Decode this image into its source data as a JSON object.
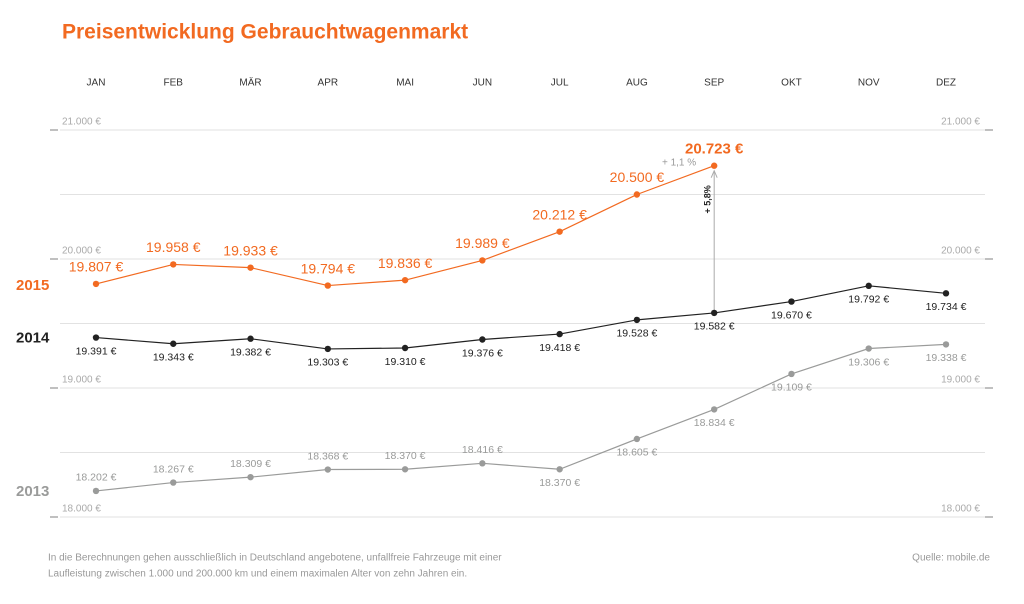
{
  "chart_data": {
    "type": "line",
    "title": "Preisentwicklung Gebrauchtwagenmarkt",
    "categories": [
      "JAN",
      "FEB",
      "MÄR",
      "APR",
      "MAI",
      "JUN",
      "JUL",
      "AUG",
      "SEP",
      "OKT",
      "NOV",
      "DEZ"
    ],
    "series": [
      {
        "name": "2015",
        "color": "#f26a21",
        "values": [
          19807,
          19958,
          19933,
          19794,
          19836,
          19989,
          20212,
          20500,
          20723,
          null,
          null,
          null
        ],
        "value_labels": [
          "19.807 €",
          "19.958 €",
          "19.933 €",
          "19.794 €",
          "19.836 €",
          "19.989 €",
          "20.212 €",
          "20.500 €",
          "20.723 €",
          null,
          null,
          null
        ]
      },
      {
        "name": "2014",
        "color": "#222222",
        "values": [
          19391,
          19343,
          19382,
          19303,
          19310,
          19376,
          19418,
          19528,
          19582,
          19670,
          19792,
          19734
        ],
        "value_labels": [
          "19.391 €",
          "19.343 €",
          "19.382 €",
          "19.303 €",
          "19.310 €",
          "19.376 €",
          "19.418 €",
          "19.528 €",
          "19.582 €",
          "19.670 €",
          "19.792 €",
          "19.734 €"
        ]
      },
      {
        "name": "2013",
        "color": "#9a9b9a",
        "values": [
          18202,
          18267,
          18309,
          18368,
          18370,
          18416,
          18370,
          18605,
          18834,
          19109,
          19306,
          19338
        ],
        "value_labels": [
          "18.202 €",
          "18.267 €",
          "18.309 €",
          "18.368 €",
          "18.370 €",
          "18.416 €",
          "18.370 €",
          "18.605 €",
          "18.834 €",
          "19.109 €",
          "19.306 €",
          "19.338 €"
        ]
      }
    ],
    "ylim": [
      18000,
      21000
    ],
    "yticks": [
      {
        "value": 18000,
        "label": "18.000 €"
      },
      {
        "value": 19000,
        "label": "19.000 €"
      },
      {
        "value": 20000,
        "label": "20.000 €"
      },
      {
        "value": 21000,
        "label": "21.000 €"
      }
    ],
    "ygrid": [
      18500,
      19500,
      20500
    ],
    "annotations": [
      "+ 1,1 %",
      "+ 5,8%"
    ],
    "footnote": [
      "In die Berechnungen gehen ausschließlich in Deutschland angebotene, unfallfreie Fahrzeuge mit einer",
      "Laufleistung zwischen 1.000 und 200.000 km und einem maximalen Alter von zehn Jahren ein."
    ],
    "source": "Quelle: mobile.de"
  }
}
